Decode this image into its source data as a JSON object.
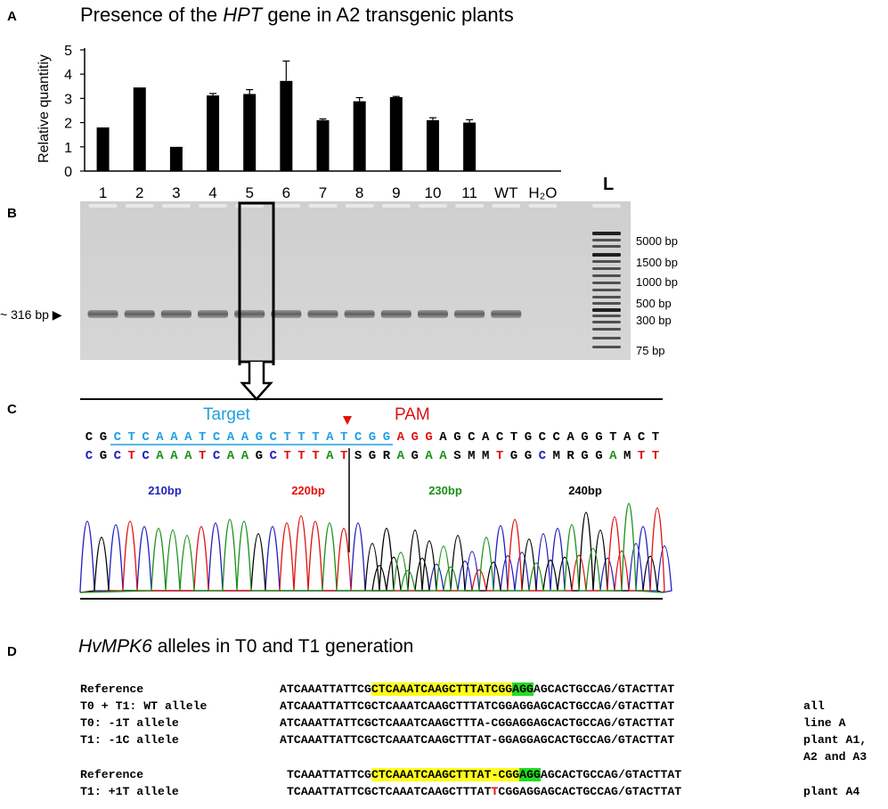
{
  "panel_a": {
    "letter": "A",
    "title_prefix": "Presence of the ",
    "title_gene": "HPT",
    "title_suffix": " gene in A2 transgenic plants"
  },
  "chart_data": {
    "type": "bar",
    "categories": [
      "1",
      "2",
      "3",
      "4",
      "5",
      "6",
      "7",
      "8",
      "9",
      "10",
      "11",
      "WT",
      "H₂O"
    ],
    "values": [
      1.8,
      3.45,
      1.0,
      3.12,
      3.18,
      3.72,
      2.1,
      2.88,
      3.05,
      2.1,
      2.0,
      0,
      0
    ],
    "errors": [
      0,
      0,
      0,
      0.08,
      0.18,
      0.82,
      0.05,
      0.15,
      0.03,
      0.1,
      0.12,
      0,
      0
    ],
    "ylabel": "Relative quantitiy",
    "ylim": [
      0,
      5
    ],
    "yticks": [
      "0",
      "1",
      "2",
      "3",
      "4",
      "5"
    ],
    "grid": false,
    "bar_color": "#000000"
  },
  "panel_b": {
    "letter": "B",
    "ladder_label": "L",
    "band_label": "~ 316 bp",
    "bands_present": [
      true,
      true,
      true,
      true,
      true,
      true,
      true,
      true,
      true,
      true,
      true,
      true,
      false
    ],
    "ladder_bp": [
      "5000 bp",
      "1500 bp",
      "1000 bp",
      "500 bp",
      "300 bp",
      "75 bp"
    ]
  },
  "panel_c": {
    "letter": "C",
    "target_label": "Target",
    "pam_label": "PAM",
    "ref_seq": "CGCTCAAATCAAGCTTTATCGGAGGAGCACTGCCAGGTACT",
    "read_seq": "CGCTCAAATCAAGCTTTATSGRAGAASMMTGGCMRGGAMTT",
    "position_labels": [
      {
        "text": "210bp",
        "color": "#2020c0"
      },
      {
        "text": "220bp",
        "color": "#e01010"
      },
      {
        "text": "230bp",
        "color": "#189018"
      },
      {
        "text": "240bp",
        "color": "#000000"
      }
    ],
    "base_colors": {
      "A": "#189018",
      "C": "#2020c0",
      "G": "#000000",
      "T": "#e01010"
    }
  },
  "panel_d": {
    "letter": "D",
    "title_gene": "HvMPK6",
    "title_suffix": " alleles in T0 and T1 generation",
    "rows": [
      {
        "label": "Reference",
        "pre": "ATCAAATTATTCG",
        "yel": "CTCAAATCAAGCTTTATCGG",
        "grn": "AGG",
        "post": "AGCACTGCCAG/GTACTTAT",
        "note": ""
      },
      {
        "label": "T0 + T1: WT allele",
        "seq": "ATCAAATTATTCGCTCAAATCAAGCTTTATCGGAGGAGCACTGCCAG/GTACTTAT",
        "note": "all"
      },
      {
        "label": "T0: -1T allele",
        "seq": "ATCAAATTATTCGCTCAAATCAAGCTTTA-CGGAGGAGCACTGCCAG/GTACTTAT",
        "note": "line A"
      },
      {
        "label": "T1: -1C allele",
        "seq": "ATCAAATTATTCGCTCAAATCAAGCTTTAT-GGAGGAGCACTGCCAG/GTACTTAT",
        "note": "plant A1,"
      },
      {
        "label": "",
        "seq": "",
        "note": "A2 and A3"
      },
      {
        "label": "Reference",
        "pre": "TCAAATTATTCG",
        "yel": "CTCAAATCAAGCTTTAT-CGG",
        "grn": "AGG",
        "post": "AGCACTGCCAG/GTACTTAT",
        "note": ""
      },
      {
        "label": "T1: +1T allele",
        "pre": "TCAAATTATTCGCTCAAATCAAGCTTTAT",
        "red": "T",
        "post": "CGGAGGAGCACTGCCAG/GTACTTAT",
        "note": "plant A4"
      }
    ]
  }
}
